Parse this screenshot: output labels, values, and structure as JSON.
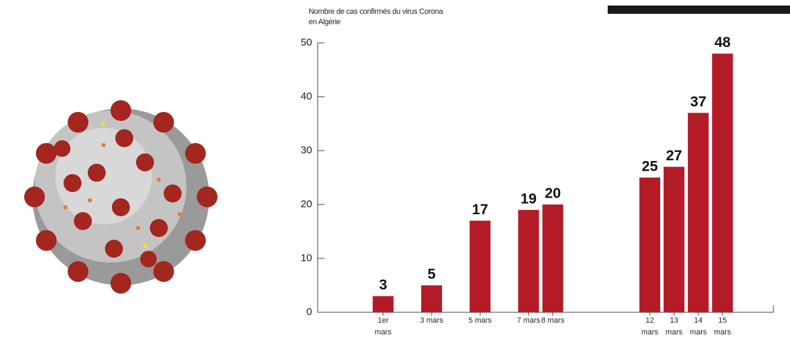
{
  "chart_data": {
    "type": "bar",
    "title": "Nombre de cas confirmés du virus Corona en Algérie",
    "x": [
      1,
      3,
      5,
      7,
      8,
      12,
      13,
      14,
      15
    ],
    "values": [
      3,
      5,
      17,
      19,
      20,
      25,
      27,
      37,
      48
    ],
    "color": "#b31b27",
    "xlim": [
      -1.7,
      17.1
    ],
    "xticks": [
      {
        "value": 1,
        "label": "1er mars"
      },
      {
        "value": 3,
        "label": "3 mars"
      },
      {
        "value": 5,
        "label": "5 mars"
      },
      {
        "value": 7,
        "label": "7 mars"
      },
      {
        "value": 8,
        "label": "8 mars"
      },
      {
        "value": 12,
        "label": "12 mars"
      },
      {
        "value": 13,
        "label": "13 mars"
      },
      {
        "value": 14,
        "label": "14 mars"
      },
      {
        "value": 15,
        "label": "15 mars"
      }
    ],
    "ylim": [
      0,
      50
    ],
    "yticks": [
      0,
      10,
      20,
      30,
      40,
      50
    ],
    "grid": false
  }
}
